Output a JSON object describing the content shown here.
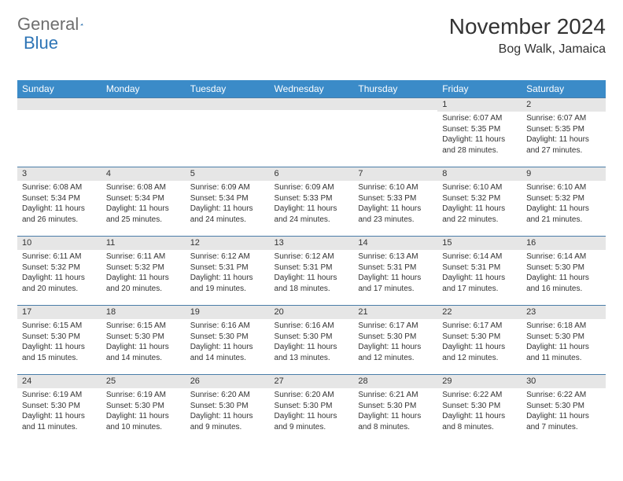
{
  "logo": {
    "general": "General",
    "blue": "Blue",
    "mark_color": "#2e75b6"
  },
  "title": "November 2024",
  "location": "Bog Walk, Jamaica",
  "colors": {
    "header_bg": "#3b8bc8",
    "header_text": "#ffffff",
    "daybar_bg": "#e6e6e6",
    "daybar_border": "#4a7da8",
    "text": "#333333"
  },
  "column_headers": [
    "Sunday",
    "Monday",
    "Tuesday",
    "Wednesday",
    "Thursday",
    "Friday",
    "Saturday"
  ],
  "weeks": [
    [
      null,
      null,
      null,
      null,
      null,
      {
        "n": "1",
        "sr": "6:07 AM",
        "ss": "5:35 PM",
        "dl": "11 hours and 28 minutes."
      },
      {
        "n": "2",
        "sr": "6:07 AM",
        "ss": "5:35 PM",
        "dl": "11 hours and 27 minutes."
      }
    ],
    [
      {
        "n": "3",
        "sr": "6:08 AM",
        "ss": "5:34 PM",
        "dl": "11 hours and 26 minutes."
      },
      {
        "n": "4",
        "sr": "6:08 AM",
        "ss": "5:34 PM",
        "dl": "11 hours and 25 minutes."
      },
      {
        "n": "5",
        "sr": "6:09 AM",
        "ss": "5:34 PM",
        "dl": "11 hours and 24 minutes."
      },
      {
        "n": "6",
        "sr": "6:09 AM",
        "ss": "5:33 PM",
        "dl": "11 hours and 24 minutes."
      },
      {
        "n": "7",
        "sr": "6:10 AM",
        "ss": "5:33 PM",
        "dl": "11 hours and 23 minutes."
      },
      {
        "n": "8",
        "sr": "6:10 AM",
        "ss": "5:32 PM",
        "dl": "11 hours and 22 minutes."
      },
      {
        "n": "9",
        "sr": "6:10 AM",
        "ss": "5:32 PM",
        "dl": "11 hours and 21 minutes."
      }
    ],
    [
      {
        "n": "10",
        "sr": "6:11 AM",
        "ss": "5:32 PM",
        "dl": "11 hours and 20 minutes."
      },
      {
        "n": "11",
        "sr": "6:11 AM",
        "ss": "5:32 PM",
        "dl": "11 hours and 20 minutes."
      },
      {
        "n": "12",
        "sr": "6:12 AM",
        "ss": "5:31 PM",
        "dl": "11 hours and 19 minutes."
      },
      {
        "n": "13",
        "sr": "6:12 AM",
        "ss": "5:31 PM",
        "dl": "11 hours and 18 minutes."
      },
      {
        "n": "14",
        "sr": "6:13 AM",
        "ss": "5:31 PM",
        "dl": "11 hours and 17 minutes."
      },
      {
        "n": "15",
        "sr": "6:14 AM",
        "ss": "5:31 PM",
        "dl": "11 hours and 17 minutes."
      },
      {
        "n": "16",
        "sr": "6:14 AM",
        "ss": "5:30 PM",
        "dl": "11 hours and 16 minutes."
      }
    ],
    [
      {
        "n": "17",
        "sr": "6:15 AM",
        "ss": "5:30 PM",
        "dl": "11 hours and 15 minutes."
      },
      {
        "n": "18",
        "sr": "6:15 AM",
        "ss": "5:30 PM",
        "dl": "11 hours and 14 minutes."
      },
      {
        "n": "19",
        "sr": "6:16 AM",
        "ss": "5:30 PM",
        "dl": "11 hours and 14 minutes."
      },
      {
        "n": "20",
        "sr": "6:16 AM",
        "ss": "5:30 PM",
        "dl": "11 hours and 13 minutes."
      },
      {
        "n": "21",
        "sr": "6:17 AM",
        "ss": "5:30 PM",
        "dl": "11 hours and 12 minutes."
      },
      {
        "n": "22",
        "sr": "6:17 AM",
        "ss": "5:30 PM",
        "dl": "11 hours and 12 minutes."
      },
      {
        "n": "23",
        "sr": "6:18 AM",
        "ss": "5:30 PM",
        "dl": "11 hours and 11 minutes."
      }
    ],
    [
      {
        "n": "24",
        "sr": "6:19 AM",
        "ss": "5:30 PM",
        "dl": "11 hours and 11 minutes."
      },
      {
        "n": "25",
        "sr": "6:19 AM",
        "ss": "5:30 PM",
        "dl": "11 hours and 10 minutes."
      },
      {
        "n": "26",
        "sr": "6:20 AM",
        "ss": "5:30 PM",
        "dl": "11 hours and 9 minutes."
      },
      {
        "n": "27",
        "sr": "6:20 AM",
        "ss": "5:30 PM",
        "dl": "11 hours and 9 minutes."
      },
      {
        "n": "28",
        "sr": "6:21 AM",
        "ss": "5:30 PM",
        "dl": "11 hours and 8 minutes."
      },
      {
        "n": "29",
        "sr": "6:22 AM",
        "ss": "5:30 PM",
        "dl": "11 hours and 8 minutes."
      },
      {
        "n": "30",
        "sr": "6:22 AM",
        "ss": "5:30 PM",
        "dl": "11 hours and 7 minutes."
      }
    ]
  ],
  "labels": {
    "sunrise": "Sunrise: ",
    "sunset": "Sunset: ",
    "daylight": "Daylight: "
  }
}
